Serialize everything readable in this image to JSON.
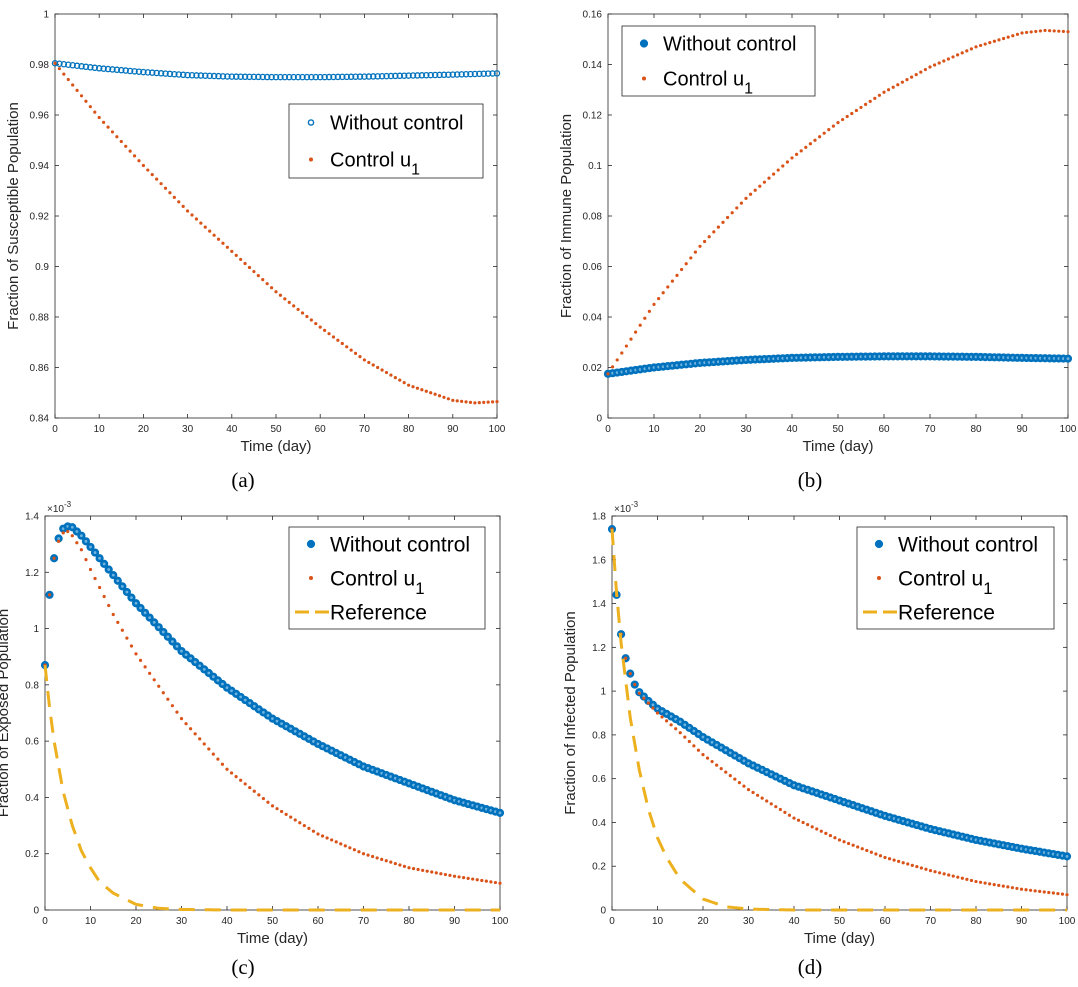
{
  "colors": {
    "blue": "#0072BD",
    "orange": "#D95319",
    "yellow": "#EDB120",
    "axis": "#262626"
  },
  "chart_data": [
    {
      "type": "scatter",
      "panel": "(a)",
      "xlabel": "Time (day)",
      "ylabel": "Fraction of Susceptible Population",
      "xlim": [
        0,
        100
      ],
      "ylim": [
        0.84,
        1
      ],
      "xticks": [
        "0",
        "10",
        "20",
        "30",
        "40",
        "50",
        "60",
        "70",
        "80",
        "90",
        "100"
      ],
      "yticks": [
        "0.84",
        "0.86",
        "0.88",
        "0.9",
        "0.92",
        "0.94",
        "0.96",
        "0.98",
        "1"
      ],
      "exponent": "",
      "legend_position": "upper-right",
      "series": [
        {
          "name": "Without control",
          "marker": "ring",
          "color": "#0072BD",
          "x": [
            0,
            10,
            20,
            30,
            40,
            50,
            60,
            70,
            80,
            90,
            100
          ],
          "y": [
            0.9805,
            0.9785,
            0.977,
            0.9758,
            0.9752,
            0.975,
            0.975,
            0.9752,
            0.9756,
            0.976,
            0.9765
          ]
        },
        {
          "name": "Control u",
          "name_sub": "1",
          "marker": "dot",
          "color": "#D95319",
          "x": [
            0,
            10,
            20,
            30,
            40,
            50,
            60,
            70,
            80,
            90,
            95,
            100
          ],
          "y": [
            0.9805,
            0.959,
            0.94,
            0.922,
            0.906,
            0.89,
            0.876,
            0.863,
            0.853,
            0.847,
            0.846,
            0.8465
          ]
        }
      ]
    },
    {
      "type": "scatter",
      "panel": "(b)",
      "xlabel": "Time (day)",
      "ylabel": "Fraction of Immune Population",
      "xlim": [
        0,
        100
      ],
      "ylim": [
        0,
        0.16
      ],
      "xticks": [
        "0",
        "10",
        "20",
        "30",
        "40",
        "50",
        "60",
        "70",
        "80",
        "90",
        "100"
      ],
      "yticks": [
        "0",
        "0.02",
        "0.04",
        "0.06",
        "0.08",
        "0.1",
        "0.12",
        "0.14",
        "0.16"
      ],
      "exponent": "",
      "legend_position": "upper-left",
      "series": [
        {
          "name": "Without control",
          "marker": "ring",
          "color": "#0072BD",
          "x": [
            0,
            10,
            20,
            30,
            40,
            50,
            60,
            70,
            80,
            90,
            100
          ],
          "y": [
            0.0175,
            0.02,
            0.0218,
            0.023,
            0.0238,
            0.0242,
            0.0244,
            0.0244,
            0.0242,
            0.0238,
            0.0235
          ]
        },
        {
          "name": "Control u",
          "name_sub": "1",
          "marker": "dot",
          "color": "#D95319",
          "x": [
            0,
            10,
            20,
            30,
            40,
            50,
            60,
            70,
            80,
            90,
            95,
            100
          ],
          "y": [
            0.0175,
            0.045,
            0.068,
            0.087,
            0.103,
            0.117,
            0.129,
            0.139,
            0.147,
            0.1525,
            0.1535,
            0.153
          ]
        }
      ]
    },
    {
      "type": "scatter",
      "panel": "(c)",
      "xlabel": "Time (day)",
      "ylabel": "Fraction of Exposed Population",
      "xlim": [
        0,
        100
      ],
      "ylim": [
        0,
        1.4
      ],
      "xticks": [
        "0",
        "10",
        "20",
        "30",
        "40",
        "50",
        "60",
        "70",
        "80",
        "90",
        "100"
      ],
      "yticks": [
        "0",
        "0.2",
        "0.4",
        "0.6",
        "0.8",
        "1",
        "1.2",
        "1.4"
      ],
      "exponent": "-3",
      "legend_position": "upper-right",
      "series": [
        {
          "name": "Without control",
          "marker": "ring",
          "color": "#0072BD",
          "x": [
            0,
            1,
            2,
            3,
            4,
            5,
            6,
            8,
            10,
            15,
            20,
            30,
            40,
            50,
            60,
            70,
            80,
            90,
            100
          ],
          "y": [
            0.87,
            1.12,
            1.25,
            1.32,
            1.355,
            1.363,
            1.36,
            1.33,
            1.29,
            1.19,
            1.09,
            0.92,
            0.79,
            0.68,
            0.59,
            0.51,
            0.45,
            0.39,
            0.345
          ]
        },
        {
          "name": "Control u",
          "name_sub": "1",
          "marker": "dot",
          "color": "#D95319",
          "x": [
            0,
            1,
            2,
            3,
            4,
            5,
            6,
            8,
            10,
            15,
            20,
            30,
            40,
            50,
            60,
            70,
            80,
            90,
            100
          ],
          "y": [
            0.87,
            1.12,
            1.25,
            1.31,
            1.34,
            1.345,
            1.33,
            1.28,
            1.21,
            1.05,
            0.91,
            0.68,
            0.5,
            0.37,
            0.27,
            0.2,
            0.15,
            0.12,
            0.095
          ]
        },
        {
          "name": "Reference",
          "marker": "dashed",
          "color": "#EDB120",
          "x": [
            0,
            1,
            2,
            4,
            6,
            8,
            10,
            12,
            15,
            20,
            25,
            30,
            40,
            50,
            60,
            70,
            80,
            90,
            100
          ],
          "y": [
            0.87,
            0.72,
            0.6,
            0.42,
            0.3,
            0.21,
            0.15,
            0.1,
            0.06,
            0.02,
            0.006,
            0.002,
            0,
            0,
            0,
            0,
            0,
            0,
            0
          ]
        }
      ]
    },
    {
      "type": "scatter",
      "panel": "(d)",
      "xlabel": "Time (day)",
      "ylabel": "Fraction of Infected Population",
      "xlim": [
        0,
        100
      ],
      "ylim": [
        0,
        1.8
      ],
      "xticks": [
        "0",
        "10",
        "20",
        "30",
        "40",
        "50",
        "60",
        "70",
        "80",
        "90",
        "100"
      ],
      "yticks": [
        "0",
        "0.2",
        "0.4",
        "0.6",
        "0.8",
        "1",
        "1.2",
        "1.4",
        "1.6",
        "1.8"
      ],
      "exponent": "-3",
      "legend_position": "upper-right",
      "series": [
        {
          "name": "Without control",
          "marker": "ring",
          "color": "#0072BD",
          "x": [
            0,
            1,
            2,
            3,
            4,
            5,
            6,
            8,
            10,
            15,
            20,
            30,
            40,
            50,
            60,
            70,
            80,
            90,
            100
          ],
          "y": [
            1.74,
            1.44,
            1.26,
            1.15,
            1.08,
            1.03,
            0.995,
            0.955,
            0.92,
            0.86,
            0.79,
            0.67,
            0.57,
            0.5,
            0.43,
            0.37,
            0.32,
            0.28,
            0.245
          ]
        },
        {
          "name": "Control u",
          "name_sub": "1",
          "marker": "dot",
          "color": "#D95319",
          "x": [
            0,
            1,
            2,
            3,
            4,
            5,
            6,
            8,
            10,
            15,
            20,
            30,
            40,
            50,
            60,
            70,
            80,
            90,
            100
          ],
          "y": [
            1.74,
            1.44,
            1.26,
            1.15,
            1.08,
            1.03,
            0.99,
            0.945,
            0.9,
            0.81,
            0.71,
            0.55,
            0.42,
            0.32,
            0.24,
            0.18,
            0.13,
            0.095,
            0.07
          ]
        },
        {
          "name": "Reference",
          "marker": "dashed",
          "color": "#EDB120",
          "x": [
            0,
            1,
            2,
            4,
            6,
            8,
            10,
            12,
            15,
            20,
            25,
            30,
            40,
            50,
            60,
            70,
            80,
            90,
            100
          ],
          "y": [
            1.74,
            1.45,
            1.22,
            0.88,
            0.64,
            0.46,
            0.33,
            0.24,
            0.14,
            0.05,
            0.015,
            0.004,
            0,
            0,
            0,
            0,
            0,
            0,
            0
          ]
        }
      ]
    }
  ]
}
